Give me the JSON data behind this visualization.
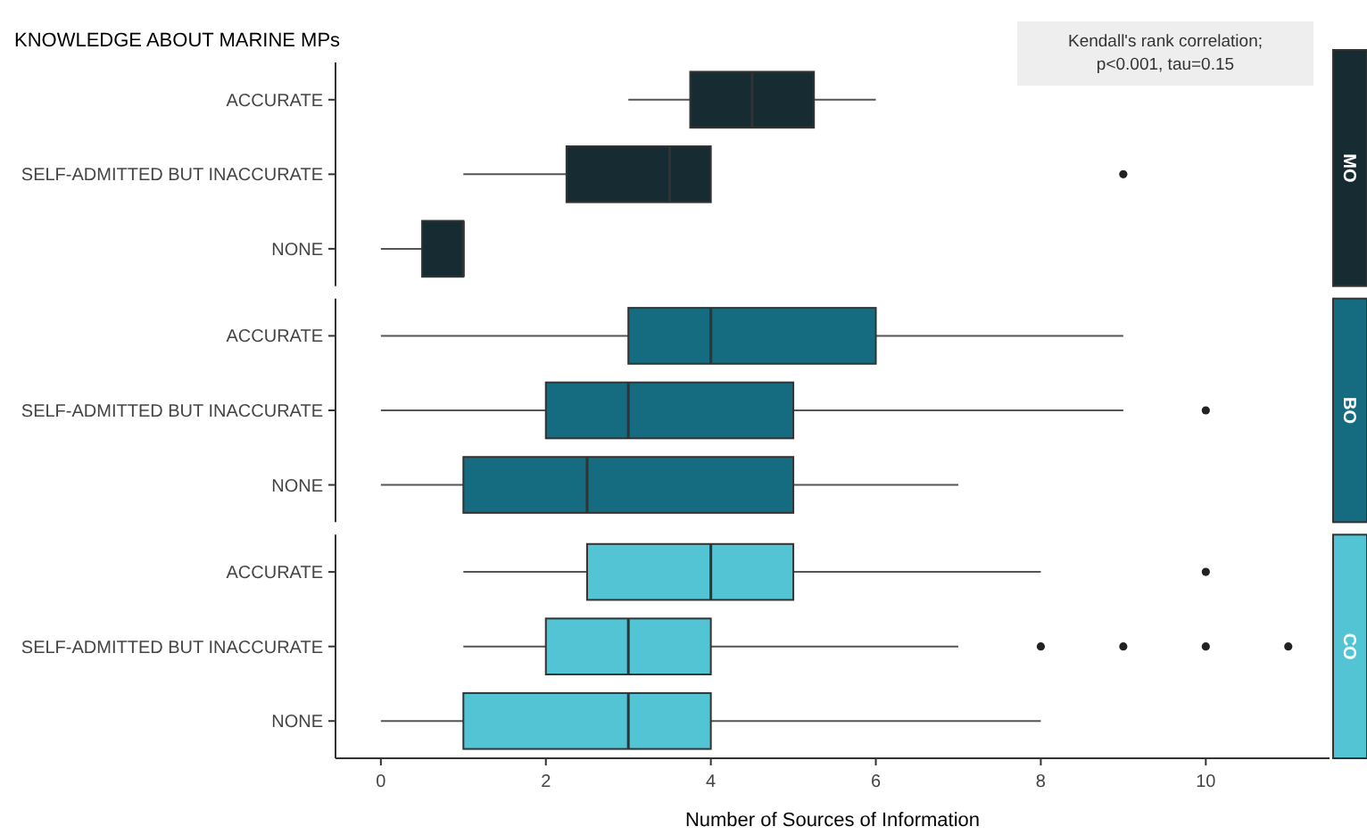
{
  "chart_data": {
    "type": "box",
    "orientation": "horizontal",
    "title": "KNOWLEDGE ABOUT MARINE MPs",
    "xlabel": "Number of Sources of Information",
    "annotations": [
      "Kendall's rank correlation;\np<0.001, tau=0.15"
    ],
    "categories": [
      "ACCURATE",
      "SELF-ADMITTED BUT INACCURATE",
      "NONE",
      "ACCURATE",
      "SELF-ADMITTED BUT INACCURATE",
      "NONE",
      "ACCURATE",
      "SELF-ADMITTED BUT INACCURATE",
      "NONE"
    ],
    "xlim": [
      -0.55,
      11.5
    ],
    "xticks": [
      0,
      2,
      4,
      6,
      8,
      10
    ],
    "series": [
      {
        "name": "MO",
        "color": "#172b33",
        "boxes": [
          {
            "low": 3,
            "q1": 3.75,
            "median": 4.5,
            "q3": 5.25,
            "high": 6
          },
          {
            "low": 1,
            "q1": 2.25,
            "median": 3.5,
            "q3": 4,
            "high": 4,
            "outliers": [
              9
            ]
          },
          {
            "low": 0,
            "q1": 0.5,
            "median": 1,
            "q3": 1,
            "high": 1
          },
          null,
          null,
          null,
          null,
          null,
          null
        ]
      },
      {
        "name": "BO",
        "color": "#156b80",
        "boxes": [
          null,
          null,
          null,
          {
            "low": 0,
            "q1": 3,
            "median": 4,
            "q3": 6,
            "high": 9
          },
          {
            "low": 0,
            "q1": 2,
            "median": 3,
            "q3": 5,
            "high": 9,
            "outliers": [
              10
            ]
          },
          {
            "low": 0,
            "q1": 1,
            "median": 2.5,
            "q3": 5,
            "high": 7
          },
          null,
          null,
          null
        ]
      },
      {
        "name": "CO",
        "color": "#52c4d4",
        "boxes": [
          null,
          null,
          null,
          null,
          null,
          null,
          {
            "low": 1,
            "q1": 2.5,
            "median": 4,
            "q3": 5,
            "high": 8,
            "outliers": [
              10
            ]
          },
          {
            "low": 1,
            "q1": 2,
            "median": 3,
            "q3": 4,
            "high": 7,
            "outliers": [
              8,
              9,
              10,
              11
            ]
          },
          {
            "low": 0,
            "q1": 1,
            "median": 3,
            "q3": 4,
            "high": 8
          }
        ]
      }
    ]
  }
}
